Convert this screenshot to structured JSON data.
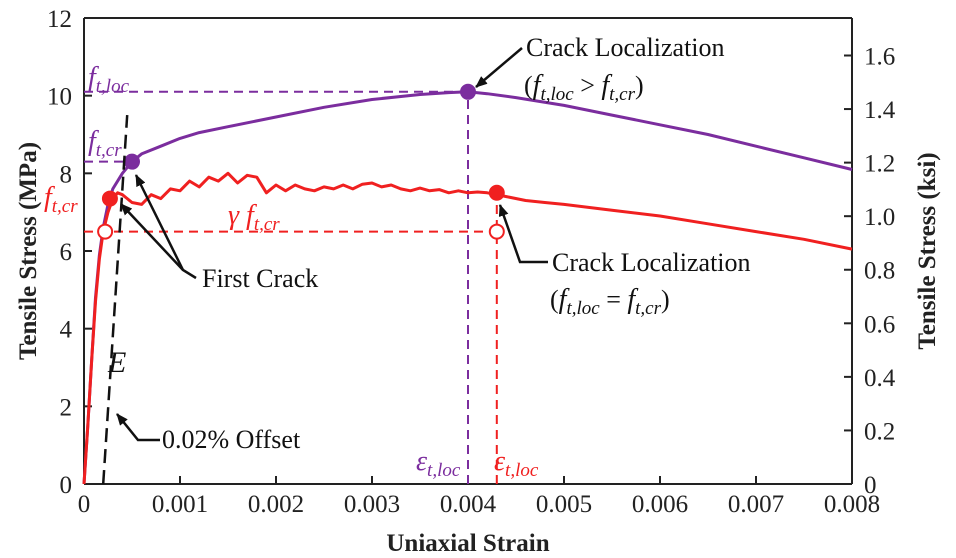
{
  "chart_data": {
    "type": "line",
    "xlabel": "Uniaxial Strain",
    "ylabel": "Tensile Stress (MPa)",
    "y2label": "Tensile Stress (ksi)",
    "xlim": [
      0,
      0.008
    ],
    "ylim": [
      0,
      12
    ],
    "y2lim": [
      0,
      1.74
    ],
    "x_ticks": [
      "0",
      "0.001",
      "0.002",
      "0.003",
      "0.004",
      "0.005",
      "0.006",
      "0.007",
      "0.008"
    ],
    "y_ticks": [
      "0",
      "2",
      "4",
      "6",
      "8",
      "10",
      "12"
    ],
    "y2_ticks": [
      "0",
      "0.2",
      "0.4",
      "0.6",
      "0.8",
      "1.0",
      "1.2",
      "1.4",
      "1.6"
    ],
    "grid": false,
    "colors": {
      "purple": "#7b2d9e",
      "red": "#f02020",
      "axis": "#222222"
    },
    "series": [
      {
        "color": "purple",
        "x": [
          0,
          4e-05,
          8e-05,
          0.00012,
          0.00016,
          0.0002,
          0.00025,
          0.0003,
          0.0004,
          0.0005,
          0.0006,
          0.0008,
          0.001,
          0.0012,
          0.0015,
          0.0018,
          0.002,
          0.0025,
          0.003,
          0.0035,
          0.0038,
          0.004,
          0.0042,
          0.0045,
          0.005,
          0.0055,
          0.006,
          0.0065,
          0.007,
          0.0075,
          0.008
        ],
        "y": [
          0,
          1.5,
          3.2,
          4.8,
          5.9,
          6.6,
          7.2,
          7.6,
          8.0,
          8.3,
          8.5,
          8.7,
          8.9,
          9.05,
          9.2,
          9.35,
          9.45,
          9.7,
          9.9,
          10.03,
          10.08,
          10.1,
          10.05,
          9.95,
          9.75,
          9.5,
          9.25,
          9.0,
          8.7,
          8.4,
          8.1
        ]
      },
      {
        "color": "red",
        "x": [
          0,
          4e-05,
          8e-05,
          0.00012,
          0.00016,
          0.0002,
          0.00025,
          0.0003,
          0.00035,
          0.0004,
          0.0005,
          0.0006,
          0.0007,
          0.0008,
          0.0009,
          0.001,
          0.0011,
          0.0012,
          0.0013,
          0.0014,
          0.0015,
          0.0016,
          0.0017,
          0.0018,
          0.0019,
          0.002,
          0.0021,
          0.0022,
          0.0023,
          0.0024,
          0.0025,
          0.0026,
          0.0027,
          0.0028,
          0.0029,
          0.003,
          0.0031,
          0.0032,
          0.0033,
          0.0034,
          0.0035,
          0.0036,
          0.0037,
          0.0038,
          0.0039,
          0.004,
          0.0041,
          0.0042,
          0.0043,
          0.0044,
          0.0046,
          0.0048,
          0.005,
          0.0055,
          0.006,
          0.0065,
          0.007,
          0.0075,
          0.008
        ],
        "y": [
          0,
          1.5,
          3.2,
          4.7,
          5.8,
          6.5,
          7.0,
          7.35,
          7.5,
          7.45,
          7.25,
          7.2,
          7.45,
          7.35,
          7.6,
          7.55,
          7.8,
          7.65,
          7.9,
          7.8,
          8.0,
          7.75,
          7.95,
          7.9,
          7.5,
          7.7,
          7.55,
          7.7,
          7.6,
          7.55,
          7.65,
          7.6,
          7.7,
          7.6,
          7.72,
          7.75,
          7.65,
          7.7,
          7.6,
          7.55,
          7.62,
          7.55,
          7.58,
          7.5,
          7.55,
          7.5,
          7.52,
          7.5,
          7.45,
          7.4,
          7.3,
          7.25,
          7.2,
          7.05,
          6.9,
          6.7,
          6.5,
          6.3,
          6.05
        ]
      }
    ],
    "elastic_line": {
      "label": "E",
      "x": [
        0.0002,
        0.00045
      ],
      "y": [
        0,
        9.5
      ]
    },
    "markers": [
      {
        "color": "purple",
        "x": 0.0005,
        "y": 8.3
      },
      {
        "color": "purple",
        "x": 0.004,
        "y": 10.1
      },
      {
        "color": "red",
        "x": 0.00027,
        "y": 7.35
      },
      {
        "color": "red",
        "x": 0.0043,
        "y": 7.5
      },
      {
        "color": "red",
        "open": true,
        "x": 0.00022,
        "y": 6.5
      },
      {
        "color": "red",
        "open": true,
        "x": 0.0043,
        "y": 6.5
      }
    ],
    "guides": [
      {
        "color": "purple",
        "axis": "h",
        "y": 10.1,
        "x": [
          0,
          0.004
        ]
      },
      {
        "color": "purple",
        "axis": "v",
        "x": 0.004,
        "y": [
          0,
          10.1
        ]
      },
      {
        "color": "purple",
        "axis": "h",
        "y": 8.3,
        "x": [
          0,
          0.0005
        ]
      },
      {
        "color": "red",
        "axis": "h",
        "y": 6.5,
        "x": [
          0,
          0.0043
        ]
      },
      {
        "color": "red",
        "axis": "v",
        "x": 0.0043,
        "y": [
          0,
          7.5
        ]
      }
    ],
    "annotations": {
      "f_t_loc": {
        "main": "f",
        "sub": "t,loc"
      },
      "f_t_cr_purple": {
        "main": "f",
        "sub": "t,cr"
      },
      "f_t_cr_red": {
        "main": "f",
        "sub": "t,cr"
      },
      "gamma_f_t_cr": {
        "main": "γ f",
        "sub": "t,cr"
      },
      "eps_loc_purple": {
        "main": "ε",
        "sub": "t,loc"
      },
      "eps_loc_red": {
        "main": "ε",
        "sub": "t,loc"
      },
      "E": "E",
      "first_crack": "First Crack",
      "offset": "0.02% Offset",
      "crack_loc_purple": {
        "title": "Crack Localization",
        "open": "(",
        "f1": "f",
        "s1": "t,loc",
        "op": " > ",
        "f2": "f",
        "s2": "t,cr",
        "close": ")"
      },
      "crack_loc_red": {
        "title": "Crack Localization",
        "open": "(",
        "f1": "f",
        "s1": "t,loc",
        "op": " = ",
        "f2": "f",
        "s2": "t,cr",
        "close": ")"
      }
    }
  }
}
